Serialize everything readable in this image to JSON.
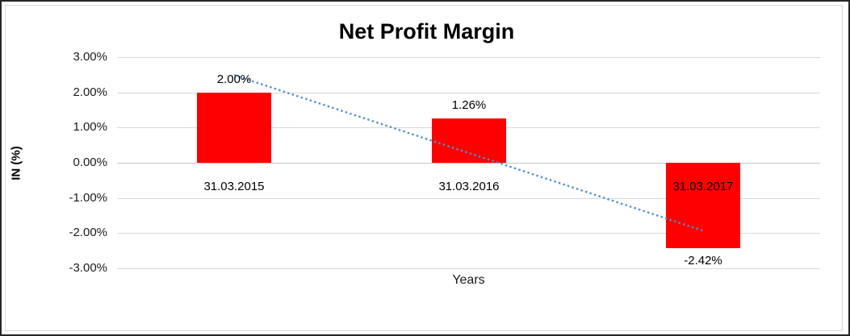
{
  "window": {
    "background": "#ffffff",
    "outer_border_color": "#262626",
    "inner_border_color": "#d9d9d9"
  },
  "chart_data": {
    "type": "bar",
    "title": "Net Profit Margin",
    "xlabel": "Years",
    "ylabel": "IN (%)",
    "categories": [
      "31.03.2015",
      "31.03.2016",
      "31.03.2017"
    ],
    "values": [
      2.0,
      1.26,
      -2.42
    ],
    "data_labels": [
      "2.00%",
      "1.26%",
      "-2.42%"
    ],
    "series_name": "Net Profit Margin",
    "ytick_labels": [
      "3.00%",
      "2.00%",
      "1.00%",
      "0.00%",
      "-1.00%",
      "-2.00%",
      "-3.00%"
    ],
    "ytick_values": [
      3,
      2,
      1,
      0,
      -1,
      -2,
      -3
    ],
    "ylim": [
      -3,
      3
    ],
    "grid": true,
    "gridline_color": "#d9d9d9",
    "bar_color": "#FF0000",
    "legend": "none",
    "trendline": {
      "type": "linear",
      "style": "dotted",
      "color": "#4F8FD0",
      "start_value": 2.49,
      "end_value": -1.93
    }
  }
}
